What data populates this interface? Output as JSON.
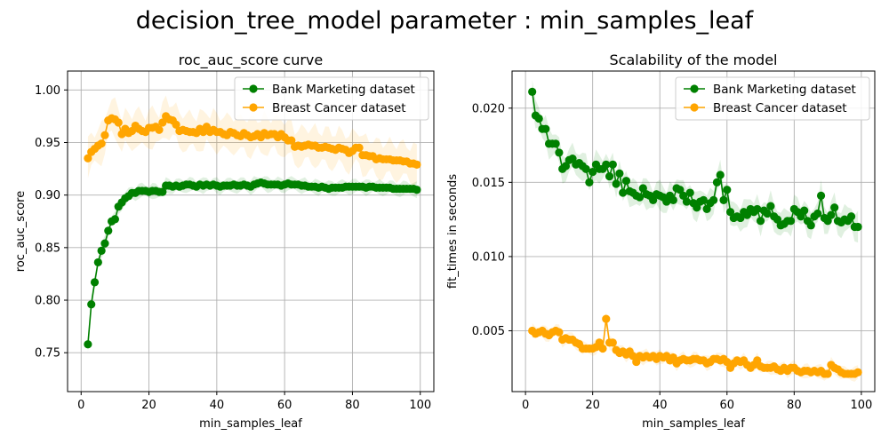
{
  "suptitle": "decision_tree_model parameter : min_samples_leaf",
  "chart_data": [
    {
      "type": "line",
      "title": "roc_auc_score curve",
      "xlabel": "min_samples_leaf",
      "ylabel": "roc_auc_score",
      "xlim": [
        -4,
        104
      ],
      "ylim": [
        0.713,
        1.018
      ],
      "xticks": [
        0,
        20,
        40,
        60,
        80,
        100
      ],
      "xtick_labels": [
        "0",
        "20",
        "40",
        "60",
        "80",
        "100"
      ],
      "yticks": [
        0.75,
        0.8,
        0.85,
        0.9,
        0.95,
        1.0
      ],
      "ytick_labels": [
        "0.75",
        "0.80",
        "0.85",
        "0.90",
        "0.95",
        "1.00"
      ],
      "grid": true,
      "legend": "upper right",
      "x": [
        2,
        3,
        4,
        5,
        6,
        7,
        8,
        9,
        10,
        11,
        12,
        13,
        14,
        15,
        16,
        17,
        18,
        19,
        20,
        21,
        22,
        23,
        24,
        25,
        26,
        27,
        28,
        29,
        30,
        31,
        32,
        33,
        34,
        35,
        36,
        37,
        38,
        39,
        40,
        41,
        42,
        43,
        44,
        45,
        46,
        47,
        48,
        49,
        50,
        51,
        52,
        53,
        54,
        55,
        56,
        57,
        58,
        59,
        60,
        61,
        62,
        63,
        64,
        65,
        66,
        67,
        68,
        69,
        70,
        71,
        72,
        73,
        74,
        75,
        76,
        77,
        78,
        79,
        80,
        81,
        82,
        83,
        84,
        85,
        86,
        87,
        88,
        89,
        90,
        91,
        92,
        93,
        94,
        95,
        96,
        97,
        98,
        99
      ],
      "series": [
        {
          "name": "Bank Marketing dataset",
          "color": "#008000",
          "values": [
            0.758,
            0.796,
            0.817,
            0.836,
            0.847,
            0.854,
            0.866,
            0.875,
            0.877,
            0.889,
            0.893,
            0.897,
            0.899,
            0.902,
            0.902,
            0.904,
            0.904,
            0.904,
            0.903,
            0.904,
            0.904,
            0.903,
            0.903,
            0.909,
            0.909,
            0.908,
            0.909,
            0.908,
            0.909,
            0.91,
            0.91,
            0.909,
            0.908,
            0.91,
            0.909,
            0.91,
            0.909,
            0.91,
            0.909,
            0.908,
            0.909,
            0.909,
            0.909,
            0.91,
            0.909,
            0.909,
            0.91,
            0.909,
            0.908,
            0.91,
            0.911,
            0.912,
            0.911,
            0.91,
            0.91,
            0.91,
            0.91,
            0.909,
            0.91,
            0.911,
            0.91,
            0.91,
            0.91,
            0.909,
            0.909,
            0.908,
            0.908,
            0.908,
            0.907,
            0.908,
            0.907,
            0.906,
            0.907,
            0.907,
            0.907,
            0.907,
            0.908,
            0.908,
            0.908,
            0.908,
            0.908,
            0.908,
            0.907,
            0.908,
            0.908,
            0.907,
            0.907,
            0.907,
            0.907,
            0.907,
            0.906,
            0.906,
            0.906,
            0.906,
            0.906,
            0.906,
            0.906,
            0.905
          ],
          "band_halfwidth": 0.006
        },
        {
          "name": "Breast Cancer dataset",
          "color": "#ffa500",
          "values": [
            0.935,
            0.941,
            0.944,
            0.947,
            0.949,
            0.957,
            0.971,
            0.973,
            0.972,
            0.969,
            0.958,
            0.963,
            0.959,
            0.961,
            0.966,
            0.963,
            0.961,
            0.96,
            0.964,
            0.964,
            0.965,
            0.962,
            0.969,
            0.975,
            0.972,
            0.971,
            0.967,
            0.961,
            0.962,
            0.961,
            0.96,
            0.96,
            0.959,
            0.963,
            0.96,
            0.965,
            0.96,
            0.962,
            0.96,
            0.96,
            0.958,
            0.957,
            0.96,
            0.959,
            0.957,
            0.956,
            0.959,
            0.957,
            0.955,
            0.956,
            0.958,
            0.955,
            0.959,
            0.957,
            0.958,
            0.958,
            0.955,
            0.958,
            0.955,
            0.952,
            0.952,
            0.946,
            0.947,
            0.946,
            0.947,
            0.948,
            0.947,
            0.947,
            0.945,
            0.945,
            0.946,
            0.945,
            0.944,
            0.943,
            0.945,
            0.944,
            0.943,
            0.94,
            0.942,
            0.945,
            0.945,
            0.938,
            0.938,
            0.937,
            0.937,
            0.934,
            0.935,
            0.934,
            0.934,
            0.934,
            0.933,
            0.933,
            0.933,
            0.932,
            0.932,
            0.93,
            0.93,
            0.929
          ],
          "band_halfwidth": 0.016
        }
      ]
    },
    {
      "type": "line",
      "title": "Scalability of the model",
      "xlabel": "min_samples_leaf",
      "ylabel": "fit_times in seconds",
      "xlim": [
        -4,
        104
      ],
      "ylim": [
        0.0009,
        0.0225
      ],
      "xticks": [
        0,
        20,
        40,
        60,
        80,
        100
      ],
      "xtick_labels": [
        "0",
        "20",
        "40",
        "60",
        "80",
        "100"
      ],
      "yticks": [
        0.005,
        0.01,
        0.015,
        0.02
      ],
      "ytick_labels": [
        "0.005",
        "0.010",
        "0.015",
        "0.020"
      ],
      "grid": true,
      "legend": "upper right",
      "x": [
        2,
        3,
        4,
        5,
        6,
        7,
        8,
        9,
        10,
        11,
        12,
        13,
        14,
        15,
        16,
        17,
        18,
        19,
        20,
        21,
        22,
        23,
        24,
        25,
        26,
        27,
        28,
        29,
        30,
        31,
        32,
        33,
        34,
        35,
        36,
        37,
        38,
        39,
        40,
        41,
        42,
        43,
        44,
        45,
        46,
        47,
        48,
        49,
        50,
        51,
        52,
        53,
        54,
        55,
        56,
        57,
        58,
        59,
        60,
        61,
        62,
        63,
        64,
        65,
        66,
        67,
        68,
        69,
        70,
        71,
        72,
        73,
        74,
        75,
        76,
        77,
        78,
        79,
        80,
        81,
        82,
        83,
        84,
        85,
        86,
        87,
        88,
        89,
        90,
        91,
        92,
        93,
        94,
        95,
        96,
        97,
        98,
        99
      ],
      "series": [
        {
          "name": "Bank Marketing dataset",
          "color": "#008000",
          "values": [
            0.0211,
            0.0195,
            0.0193,
            0.0186,
            0.0186,
            0.0176,
            0.0176,
            0.0176,
            0.017,
            0.0159,
            0.0161,
            0.0165,
            0.0166,
            0.0162,
            0.0163,
            0.0161,
            0.0159,
            0.015,
            0.0157,
            0.0162,
            0.0159,
            0.0159,
            0.0162,
            0.0154,
            0.0162,
            0.0149,
            0.0156,
            0.0143,
            0.0151,
            0.0144,
            0.0143,
            0.0141,
            0.014,
            0.0146,
            0.0142,
            0.0141,
            0.0138,
            0.0142,
            0.0141,
            0.014,
            0.0137,
            0.0141,
            0.0138,
            0.0146,
            0.0145,
            0.0141,
            0.0137,
            0.0143,
            0.0136,
            0.0133,
            0.0137,
            0.0138,
            0.0132,
            0.0136,
            0.0138,
            0.015,
            0.0155,
            0.0138,
            0.0145,
            0.013,
            0.0126,
            0.0127,
            0.0126,
            0.013,
            0.0128,
            0.0132,
            0.013,
            0.0132,
            0.0124,
            0.0131,
            0.0129,
            0.0134,
            0.0127,
            0.0125,
            0.0121,
            0.0122,
            0.0124,
            0.0124,
            0.0132,
            0.013,
            0.0127,
            0.0131,
            0.0124,
            0.0121,
            0.0127,
            0.0129,
            0.0141,
            0.0126,
            0.0124,
            0.0128,
            0.0133,
            0.0124,
            0.0123,
            0.0125,
            0.0124,
            0.0127,
            0.012,
            0.012
          ],
          "band_halfwidth": 0.0008
        },
        {
          "name": "Breast Cancer dataset",
          "color": "#ffa500",
          "values": [
            0.005,
            0.0048,
            0.0049,
            0.005,
            0.0048,
            0.0047,
            0.0049,
            0.005,
            0.0049,
            0.0044,
            0.0045,
            0.0044,
            0.0044,
            0.0042,
            0.0041,
            0.0038,
            0.0038,
            0.0038,
            0.0038,
            0.0039,
            0.0042,
            0.0038,
            0.0058,
            0.0042,
            0.0042,
            0.0037,
            0.0035,
            0.0036,
            0.0034,
            0.0036,
            0.0033,
            0.0029,
            0.0033,
            0.0032,
            0.0033,
            0.0032,
            0.0033,
            0.0031,
            0.0033,
            0.0032,
            0.0033,
            0.003,
            0.0032,
            0.0028,
            0.003,
            0.0031,
            0.003,
            0.003,
            0.0031,
            0.0031,
            0.003,
            0.003,
            0.0028,
            0.0029,
            0.0031,
            0.0031,
            0.003,
            0.0031,
            0.0029,
            0.0025,
            0.0028,
            0.003,
            0.0029,
            0.003,
            0.0027,
            0.0025,
            0.0027,
            0.003,
            0.0026,
            0.0025,
            0.0025,
            0.0025,
            0.0026,
            0.0024,
            0.0023,
            0.0025,
            0.0023,
            0.0025,
            0.0025,
            0.0023,
            0.0022,
            0.0023,
            0.0023,
            0.0022,
            0.0023,
            0.0022,
            0.0023,
            0.0021,
            0.0021,
            0.0027,
            0.0025,
            0.0024,
            0.0022,
            0.0021,
            0.0021,
            0.0021,
            0.0021,
            0.0022
          ],
          "band_halfwidth": 0.0004
        }
      ]
    }
  ]
}
